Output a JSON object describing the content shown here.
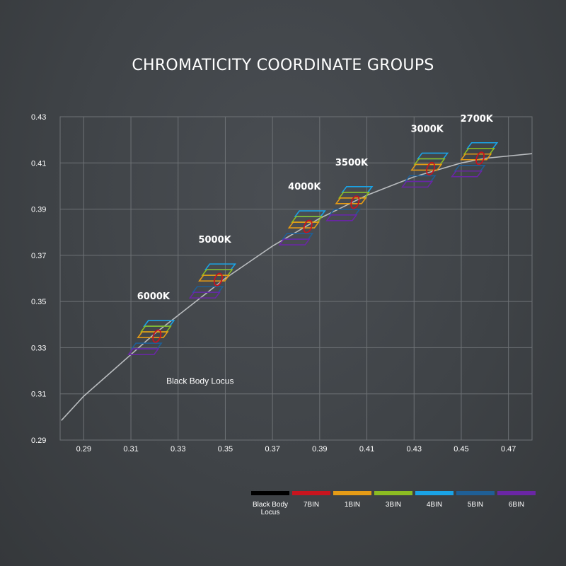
{
  "chart_data": {
    "type": "scatter",
    "title": "CHROMATICITY COORDINATE GROUPS",
    "xlabel": "",
    "ylabel": "",
    "xlim": [
      0.28,
      0.48
    ],
    "ylim": [
      0.29,
      0.43
    ],
    "x_ticks": [
      "0.29",
      "0.31",
      "0.33",
      "0.35",
      "0.37",
      "0.39",
      "0.41",
      "0.43",
      "0.45",
      "0.47"
    ],
    "y_ticks": [
      "0.43",
      "0.41",
      "0.39",
      "0.37",
      "0.35",
      "0.33",
      "0.31",
      "0.29"
    ],
    "grid": true,
    "locus_label": "Black Body Locus",
    "black_body_locus": [
      [
        0.2805,
        0.2985
      ],
      [
        0.29,
        0.309
      ],
      [
        0.3,
        0.318
      ],
      [
        0.31,
        0.327
      ],
      [
        0.32,
        0.336
      ],
      [
        0.33,
        0.344
      ],
      [
        0.34,
        0.352
      ],
      [
        0.35,
        0.36
      ],
      [
        0.36,
        0.367
      ],
      [
        0.37,
        0.374
      ],
      [
        0.38,
        0.38
      ],
      [
        0.39,
        0.386
      ],
      [
        0.4,
        0.391
      ],
      [
        0.41,
        0.396
      ],
      [
        0.42,
        0.4
      ],
      [
        0.43,
        0.404
      ],
      [
        0.44,
        0.407
      ],
      [
        0.45,
        0.41
      ],
      [
        0.46,
        0.412
      ],
      [
        0.47,
        0.413
      ],
      [
        0.48,
        0.414
      ]
    ],
    "groups": [
      {
        "label": "6000K",
        "x": 0.321,
        "y": 0.335
      },
      {
        "label": "5000K",
        "x": 0.347,
        "y": 0.3595
      },
      {
        "label": "4000K",
        "x": 0.385,
        "y": 0.3825
      },
      {
        "label": "3500K",
        "x": 0.405,
        "y": 0.393
      },
      {
        "label": "3000K",
        "x": 0.437,
        "y": 0.4075
      },
      {
        "label": "2700K",
        "x": 0.458,
        "y": 0.412
      }
    ],
    "legend_placement": "bottom-right",
    "legend": [
      {
        "name": "Black Body Locus",
        "color": "#000000"
      },
      {
        "name": "7BIN",
        "color": "#c8141e"
      },
      {
        "name": "1BIN",
        "color": "#e59b16"
      },
      {
        "name": "3BIN",
        "color": "#8cbc22"
      },
      {
        "name": "4BIN",
        "color": "#1aa3e6"
      },
      {
        "name": "5BIN",
        "color": "#1f5f96"
      },
      {
        "name": "6BIN",
        "color": "#6a26a5"
      }
    ]
  }
}
